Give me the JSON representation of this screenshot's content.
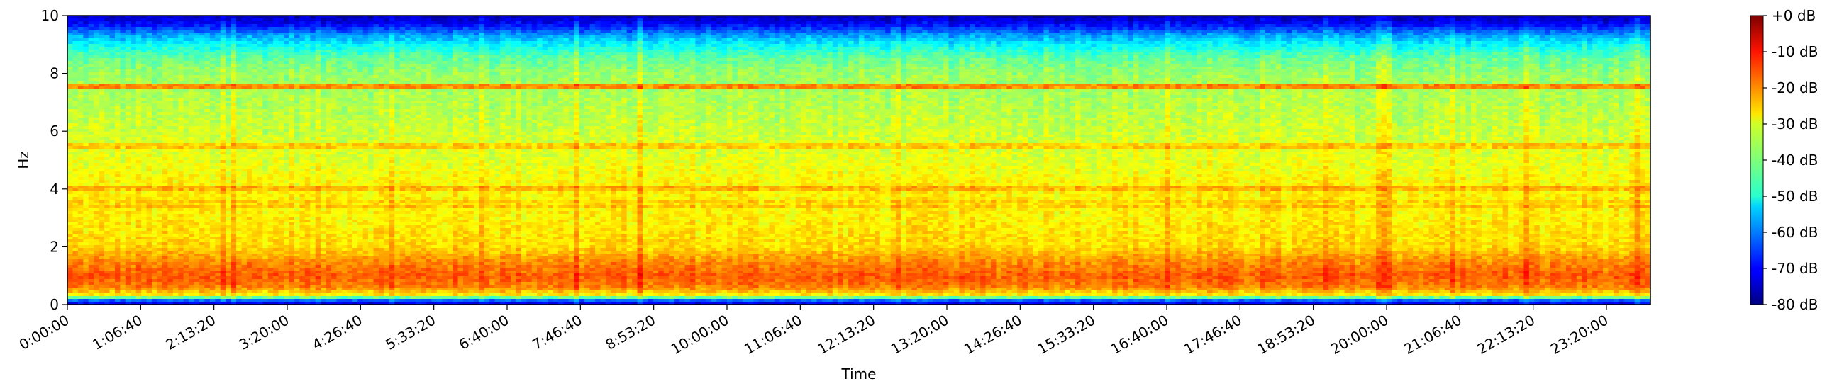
{
  "chart_data": {
    "type": "heatmap",
    "subtype": "spectrogram",
    "xlabel": "Time",
    "ylabel": "Hz",
    "ylim": [
      0,
      10
    ],
    "y_ticks": [
      0,
      2,
      4,
      6,
      8,
      10
    ],
    "x_tick_labels": [
      "0:00:00",
      "1:06:40",
      "2:13:20",
      "3:20:00",
      "4:26:40",
      "5:33:20",
      "6:40:00",
      "7:46:40",
      "8:53:20",
      "10:00:00",
      "11:06:40",
      "12:13:20",
      "13:20:00",
      "14:26:40",
      "15:33:20",
      "16:40:00",
      "17:46:40",
      "18:53:20",
      "20:00:00",
      "21:06:40",
      "22:13:20",
      "23:20:00"
    ],
    "x_tick_seconds": [
      0,
      4000,
      8000,
      12000,
      16000,
      20000,
      24000,
      28000,
      32000,
      36000,
      40000,
      44000,
      48000,
      52000,
      56000,
      60000,
      64000,
      68000,
      72000,
      76000,
      80000,
      84000
    ],
    "xlim_seconds": [
      0,
      86400
    ],
    "colorbar": {
      "colormap": "jet",
      "range_db": [
        -80,
        0
      ],
      "tick_values": [
        0,
        -10,
        -20,
        -30,
        -40,
        -50,
        -60,
        -70,
        -80
      ],
      "tick_labels": [
        "+0 dB",
        "-10 dB",
        "-20 dB",
        "-30 dB",
        "-40 dB",
        "-50 dB",
        "-60 dB",
        "-70 dB",
        "-80 dB"
      ]
    },
    "frequency_profile_db": [
      {
        "hz": 0.0,
        "db": -75
      },
      {
        "hz": 0.15,
        "db": -62
      },
      {
        "hz": 0.3,
        "db": -30
      },
      {
        "hz": 0.6,
        "db": -20
      },
      {
        "hz": 1.0,
        "db": -17
      },
      {
        "hz": 1.5,
        "db": -21
      },
      {
        "hz": 2.0,
        "db": -27
      },
      {
        "hz": 3.0,
        "db": -29
      },
      {
        "hz": 4.0,
        "db": -29
      },
      {
        "hz": 5.0,
        "db": -32
      },
      {
        "hz": 6.0,
        "db": -34
      },
      {
        "hz": 7.0,
        "db": -36
      },
      {
        "hz": 8.0,
        "db": -38
      },
      {
        "hz": 8.5,
        "db": -42
      },
      {
        "hz": 9.0,
        "db": -50
      },
      {
        "hz": 9.4,
        "db": -60
      },
      {
        "hz": 9.7,
        "db": -70
      },
      {
        "hz": 10.0,
        "db": -76
      }
    ],
    "narrowband_lines": [
      {
        "hz": 7.55,
        "db": -22
      },
      {
        "hz": 5.5,
        "db": -27
      },
      {
        "hz": 4.0,
        "db": -25
      },
      {
        "hz": 3.5,
        "db": -28
      }
    ],
    "grid": false
  }
}
